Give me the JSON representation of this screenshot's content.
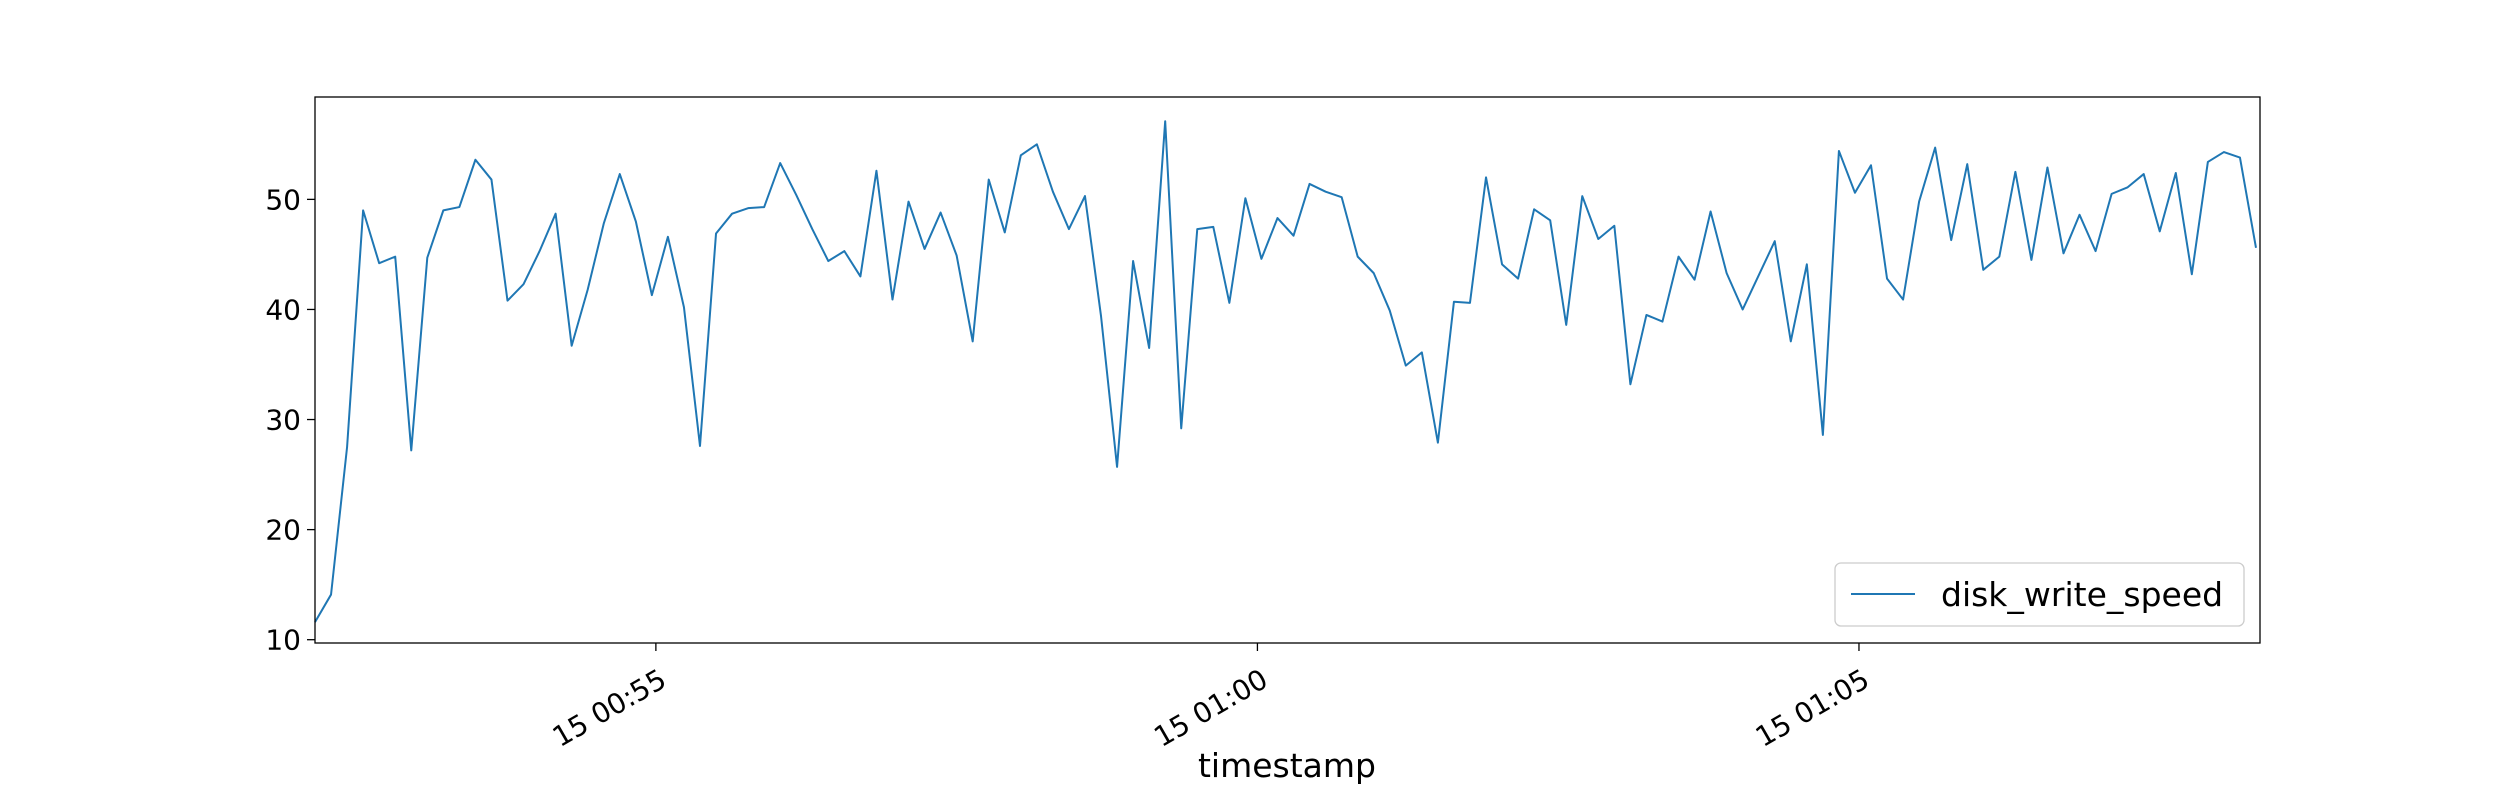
{
  "chart_data": {
    "type": "line",
    "xlabel": "timestamp",
    "ylabel": "",
    "ylim": [
      9.7,
      59.3
    ],
    "xlim": [
      "2024-01-15 00:52:10",
      "2024-01-15 01:08:20"
    ],
    "y_ticks": [
      10,
      20,
      30,
      40,
      50
    ],
    "x_ticks": [
      {
        "t": "2024-01-15 00:55:00",
        "label": "15 00:55"
      },
      {
        "t": "2024-01-15 01:00:00",
        "label": "15 01:00"
      },
      {
        "t": "2024-01-15 01:05:00",
        "label": "15 01:05"
      }
    ],
    "x_start": "2024-01-15 00:52:10",
    "x_step_seconds": 8,
    "legend_position": "lower-right",
    "grid": false,
    "series": [
      {
        "name": "disk_write_speed",
        "color": "#1f77b4",
        "values": [
          11.6,
          14.1,
          27.5,
          49.0,
          44.2,
          44.8,
          27.2,
          44.7,
          49.0,
          49.3,
          53.6,
          51.8,
          40.8,
          42.3,
          45.3,
          48.7,
          36.7,
          41.8,
          47.8,
          52.3,
          48.0,
          41.3,
          46.6,
          40.2,
          27.6,
          46.9,
          48.7,
          49.2,
          49.3,
          53.3,
          50.4,
          47.3,
          44.4,
          45.3,
          43.0,
          52.6,
          40.9,
          49.8,
          45.5,
          48.8,
          44.9,
          37.1,
          51.8,
          47.0,
          54.0,
          55.0,
          50.7,
          47.3,
          50.3,
          39.4,
          25.7,
          44.4,
          36.5,
          57.1,
          29.2,
          47.3,
          47.5,
          40.6,
          50.1,
          44.6,
          48.3,
          46.7,
          51.4,
          50.7,
          50.2,
          44.8,
          43.3,
          39.9,
          34.9,
          36.1,
          27.9,
          40.7,
          40.6,
          52.0,
          44.1,
          42.8,
          49.1,
          48.1,
          38.6,
          50.3,
          46.4,
          47.6,
          33.2,
          39.5,
          38.9,
          44.8,
          42.7,
          48.9,
          43.3,
          40.0,
          43.1,
          46.2,
          37.1,
          44.1,
          28.6,
          54.4,
          50.6,
          53.1,
          42.8,
          40.9,
          49.8,
          54.7,
          46.3,
          53.2,
          43.6,
          44.8,
          52.5,
          44.5,
          52.9,
          45.1,
          48.6,
          45.3,
          50.5,
          51.1,
          52.3,
          47.1,
          52.4,
          43.2,
          53.4,
          54.3,
          53.8,
          45.6
        ]
      }
    ]
  }
}
